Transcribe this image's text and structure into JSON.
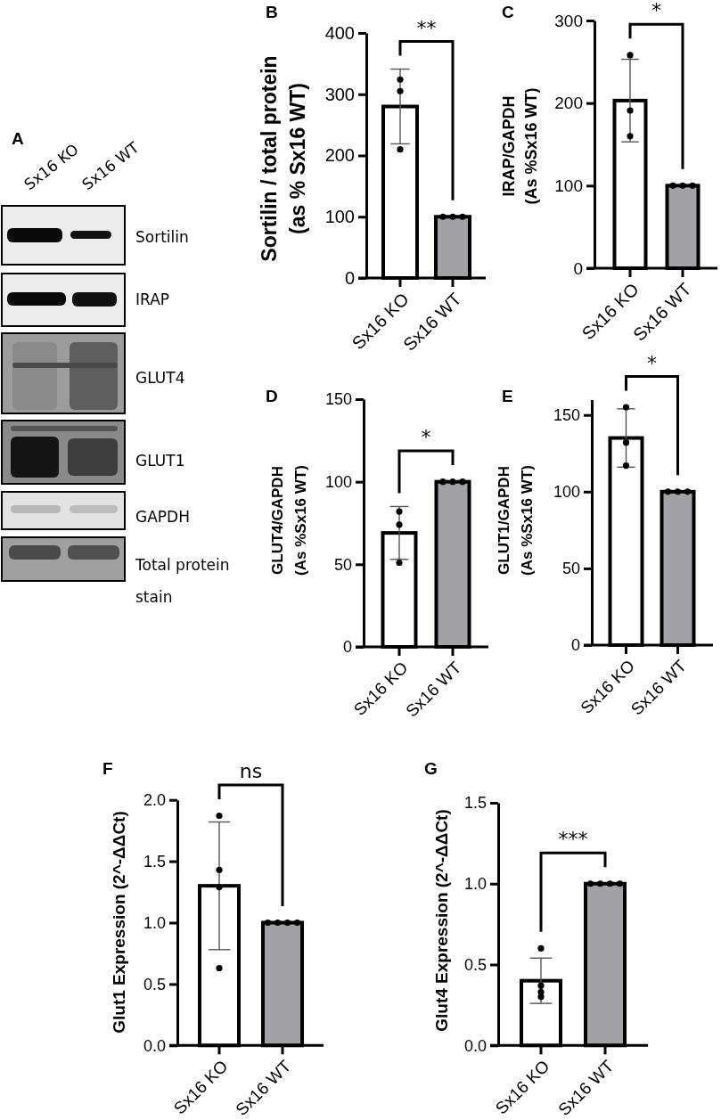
{
  "chart_data": [
    {
      "type": "other",
      "title": "A",
      "categories": [
        "Sx16 KO",
        "Sx16 WT"
      ],
      "y_categories": [
        "Sortilin",
        "IRAP",
        "GLUT4",
        "GLUT1",
        "GAPDH",
        "Total protein\nstain"
      ]
    },
    {
      "type": "bar",
      "title": "B",
      "categories": [
        "Sx16 KO",
        "Sx16 WT"
      ],
      "ylabel": "Sortilin / total protein\n(as % Sx16 WT)",
      "ylim": [
        0,
        400
      ],
      "yticks": [
        0,
        100,
        200,
        300,
        400
      ],
      "marker": "circle",
      "annotations": [
        "**"
      ],
      "series": [
        {
          "colors": [
            "#ffffff",
            "#a2a1a6"
          ],
          "values": [
            280,
            100
          ],
          "errors": [
            61,
            null
          ]
        },
        {
          "type": "scatter",
          "color": "#000000",
          "x": [
            "Sx16 KO",
            "Sx16 KO",
            "Sx16 KO",
            "Sx16 WT",
            "Sx16 WT",
            "Sx16 WT"
          ],
          "values": [
            324,
            305,
            210,
            100,
            100,
            100
          ]
        }
      ]
    },
    {
      "type": "bar",
      "title": "C",
      "categories": [
        "Sx16 KO",
        "Sx16 WT"
      ],
      "ylabel": "IRAP/GAPDH\n(As %Sx16 WT)",
      "ylim": [
        0,
        300
      ],
      "yticks": [
        0,
        100,
        200,
        300
      ],
      "marker": "circle",
      "annotations": [
        "*"
      ],
      "series": [
        {
          "colors": [
            "#ffffff",
            "#a2a1a6"
          ],
          "values": [
            203,
            100
          ],
          "errors": [
            50,
            null
          ]
        },
        {
          "type": "scatter",
          "color": "#000000",
          "x": [
            "Sx16 KO",
            "Sx16 KO",
            "Sx16 KO",
            "Sx16 WT",
            "Sx16 WT",
            "Sx16 WT"
          ],
          "values": [
            258,
            191,
            160,
            100,
            100,
            100
          ]
        }
      ]
    },
    {
      "type": "bar",
      "title": "D",
      "categories": [
        "Sx16 KO",
        "Sx16 WT"
      ],
      "ylabel": "GLUT4/GAPDH\n(As %Sx16 WT)",
      "ylim": [
        0,
        150
      ],
      "yticks": [
        0,
        50,
        100,
        150
      ],
      "marker": "circle",
      "annotations": [
        "*"
      ],
      "series": [
        {
          "colors": [
            "#ffffff",
            "#a2a1a6"
          ],
          "values": [
            69,
            100
          ],
          "errors": [
            16,
            null
          ]
        },
        {
          "type": "scatter",
          "color": "#000000",
          "x": [
            "Sx16 KO",
            "Sx16 KO",
            "Sx16 KO",
            "Sx16 WT",
            "Sx16 WT",
            "Sx16 WT"
          ],
          "values": [
            82,
            74,
            51,
            100,
            100,
            100
          ]
        }
      ]
    },
    {
      "type": "bar",
      "title": "E",
      "categories": [
        "Sx16 KO",
        "Sx16 WT"
      ],
      "ylabel": "GLUT1/GAPDH\n(As %Sx16 WT)",
      "ylim": [
        0,
        160
      ],
      "yticks": [
        0,
        50,
        100,
        150
      ],
      "marker": "circle",
      "annotations": [
        "*"
      ],
      "series": [
        {
          "colors": [
            "#ffffff",
            "#a2a1a6"
          ],
          "values": [
            135,
            100
          ],
          "errors": [
            19,
            null
          ]
        },
        {
          "type": "scatter",
          "color": "#000000",
          "x": [
            "Sx16 KO",
            "Sx16 KO",
            "Sx16 KO",
            "Sx16 WT",
            "Sx16 WT",
            "Sx16 WT"
          ],
          "values": [
            155,
            132,
            117,
            100,
            100,
            100
          ]
        }
      ]
    },
    {
      "type": "bar",
      "title": "F",
      "categories": [
        "Sx16 KO",
        "Sx16 WT"
      ],
      "ylabel": "Glut1 Expression (2^-ΔΔCt)",
      "ylim": [
        0,
        2
      ],
      "yticks": [
        {
          "value": 0,
          "label": "0.0"
        },
        0.5,
        {
          "value": 1,
          "label": "1.0"
        },
        1.5,
        {
          "value": 2,
          "label": "2.0"
        }
      ],
      "marker": "circle",
      "annotations": [
        "ns"
      ],
      "series": [
        {
          "colors": [
            "#ffffff",
            "#a2a1a6"
          ],
          "values": [
            1.3,
            1.0
          ],
          "errors": [
            0.52,
            null
          ]
        },
        {
          "type": "scatter",
          "color": "#000000",
          "x": [
            "Sx16 KO",
            "Sx16 KO",
            "Sx16 KO",
            "Sx16 KO",
            "Sx16 WT",
            "Sx16 WT",
            "Sx16 WT",
            "Sx16 WT"
          ],
          "values": [
            1.87,
            1.43,
            1.29,
            0.63,
            1,
            1,
            1,
            1
          ]
        }
      ]
    },
    {
      "type": "bar",
      "title": "G",
      "categories": [
        "Sx16 KO",
        "Sx16 WT"
      ],
      "ylabel": "Glut4 Expression (2^-ΔΔCt)",
      "ylim": [
        0,
        1.5
      ],
      "yticks": [
        {
          "value": 0,
          "label": "0.0"
        },
        0.5,
        {
          "value": 1,
          "label": "1.0"
        },
        1.5
      ],
      "marker": "circle",
      "annotations": [
        "***"
      ],
      "series": [
        {
          "colors": [
            "#ffffff",
            "#a2a1a6"
          ],
          "values": [
            0.4,
            1.0
          ],
          "errors": [
            0.14,
            null
          ]
        },
        {
          "type": "scatter",
          "color": "#000000",
          "x": [
            "Sx16 KO",
            "Sx16 KO",
            "Sx16 KO",
            "Sx16 KO",
            "Sx16 WT",
            "Sx16 WT",
            "Sx16 WT",
            "Sx16 WT"
          ],
          "values": [
            0.6,
            0.37,
            0.33,
            0.3,
            1,
            1,
            1,
            1
          ]
        }
      ]
    }
  ]
}
